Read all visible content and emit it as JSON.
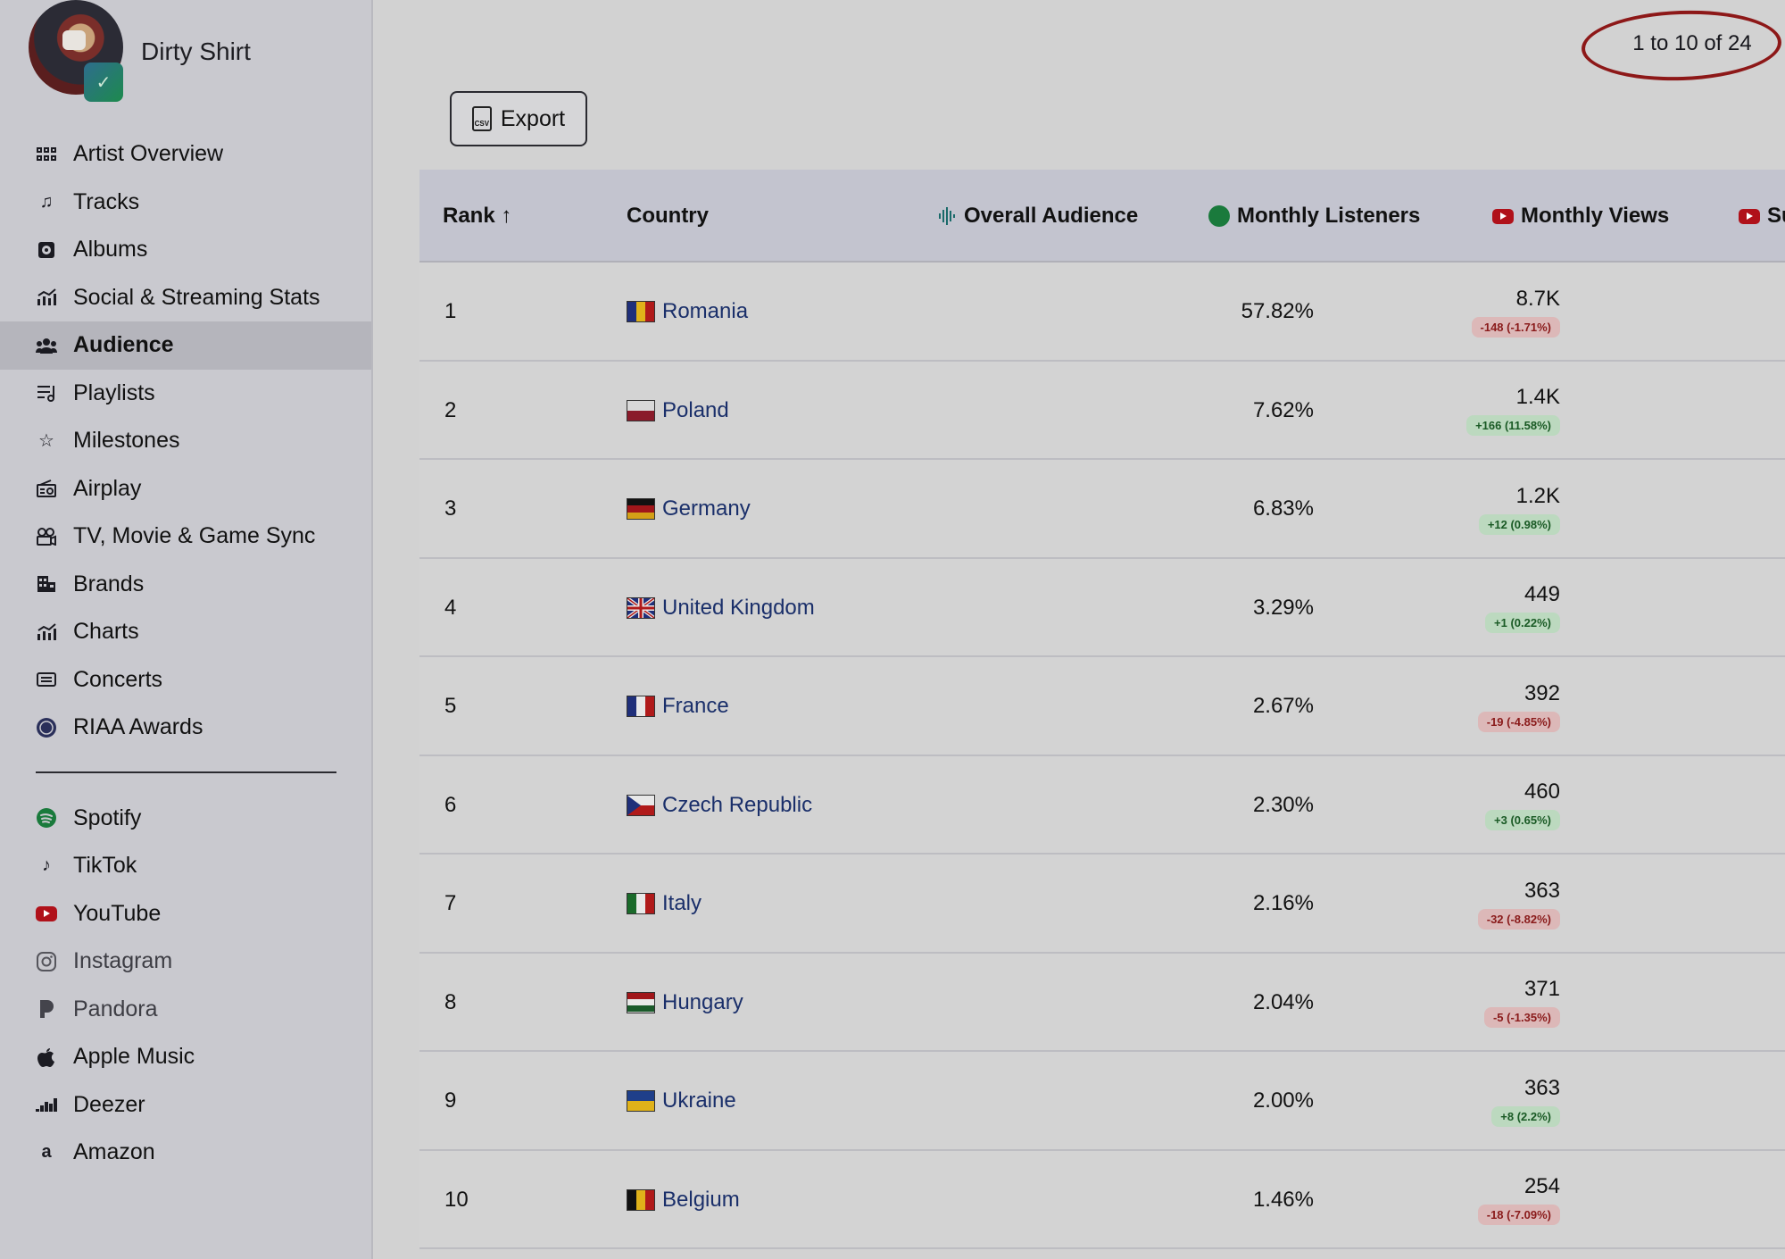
{
  "artist": {
    "name": "Dirty Shirt"
  },
  "nav": {
    "primary": [
      {
        "label": "Artist Overview",
        "icon": "grid-icon"
      },
      {
        "label": "Tracks",
        "icon": "music-note-icon"
      },
      {
        "label": "Albums",
        "icon": "album-icon"
      },
      {
        "label": "Social & Streaming Stats",
        "icon": "stats-icon"
      },
      {
        "label": "Audience",
        "icon": "users-icon",
        "active": true
      },
      {
        "label": "Playlists",
        "icon": "playlist-icon"
      },
      {
        "label": "Milestones",
        "icon": "star-icon"
      },
      {
        "label": "Airplay",
        "icon": "radio-icon"
      },
      {
        "label": "TV, Movie & Game Sync",
        "icon": "film-icon"
      },
      {
        "label": "Brands",
        "icon": "building-icon"
      },
      {
        "label": "Charts",
        "icon": "chart-icon"
      },
      {
        "label": "Concerts",
        "icon": "ticket-icon"
      },
      {
        "label": "RIAA Awards",
        "icon": "riaa-icon"
      }
    ],
    "platforms": [
      {
        "label": "Spotify",
        "icon": "spotify-icon"
      },
      {
        "label": "TikTok",
        "icon": "tiktok-icon"
      },
      {
        "label": "YouTube",
        "icon": "youtube-icon"
      },
      {
        "label": "Instagram",
        "icon": "instagram-icon"
      },
      {
        "label": "Pandora",
        "icon": "pandora-icon"
      },
      {
        "label": "Apple Music",
        "icon": "apple-icon"
      },
      {
        "label": "Deezer",
        "icon": "deezer-icon"
      },
      {
        "label": "Amazon",
        "icon": "amazon-icon"
      }
    ]
  },
  "pagination": "1 to 10 of 24",
  "export_label": "Export",
  "csv_label": "CSV",
  "colors": {
    "annotation": "#8d1818",
    "spotify": "#1a7a3c",
    "youtube": "#b0111a",
    "link": "#1a2f6a"
  },
  "table": {
    "headers": {
      "rank": "Rank ↑",
      "country": "Country",
      "audience": "Overall Audience",
      "listeners": "Monthly Listeners",
      "views": "Monthly Views",
      "subs": "Su"
    },
    "rows": [
      {
        "rank": "1",
        "country": "Romania",
        "audience": "57.82%",
        "listeners": "8.7K",
        "change": "-148 (-1.71%)",
        "trend": "neg"
      },
      {
        "rank": "2",
        "country": "Poland",
        "audience": "7.62%",
        "listeners": "1.4K",
        "change": "+166 (11.58%)",
        "trend": "pos"
      },
      {
        "rank": "3",
        "country": "Germany",
        "audience": "6.83%",
        "listeners": "1.2K",
        "change": "+12 (0.98%)",
        "trend": "pos"
      },
      {
        "rank": "4",
        "country": "United Kingdom",
        "audience": "3.29%",
        "listeners": "449",
        "change": "+1 (0.22%)",
        "trend": "pos"
      },
      {
        "rank": "5",
        "country": "France",
        "audience": "2.67%",
        "listeners": "392",
        "change": "-19 (-4.85%)",
        "trend": "neg"
      },
      {
        "rank": "6",
        "country": "Czech Republic",
        "audience": "2.30%",
        "listeners": "460",
        "change": "+3 (0.65%)",
        "trend": "pos"
      },
      {
        "rank": "7",
        "country": "Italy",
        "audience": "2.16%",
        "listeners": "363",
        "change": "-32 (-8.82%)",
        "trend": "neg"
      },
      {
        "rank": "8",
        "country": "Hungary",
        "audience": "2.04%",
        "listeners": "371",
        "change": "-5 (-1.35%)",
        "trend": "neg"
      },
      {
        "rank": "9",
        "country": "Ukraine",
        "audience": "2.00%",
        "listeners": "363",
        "change": "+8 (2.2%)",
        "trend": "pos"
      },
      {
        "rank": "10",
        "country": "Belgium",
        "audience": "1.46%",
        "listeners": "254",
        "change": "-18 (-7.09%)",
        "trend": "neg"
      }
    ]
  }
}
